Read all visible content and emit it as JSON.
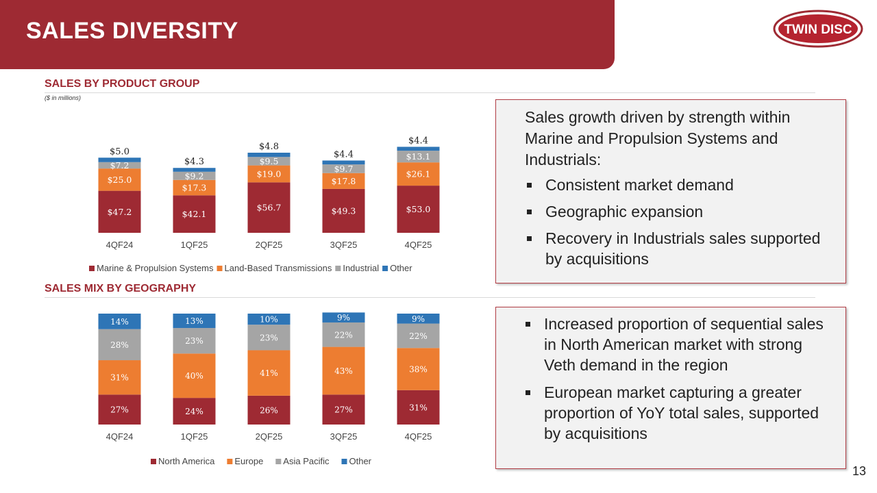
{
  "header": {
    "title": "SALES DIVERSITY",
    "logo_text": "TWIN DISC"
  },
  "section1": {
    "title": "SALES BY PRODUCT GROUP",
    "subtitle": "($ in millions)"
  },
  "section2": {
    "title": "SALES MIX BY GEOGRAPHY"
  },
  "box1": {
    "lead": "Sales growth driven by strength within Marine and Propulsion Systems and Industrials:",
    "bullets": [
      "Consistent market demand",
      "Geographic expansion",
      "Recovery in Industrials sales supported by acquisitions"
    ]
  },
  "box2": {
    "bullets": [
      "Increased proportion of sequential sales in North American market with strong Veth demand in the region",
      "European market capturing a greater proportion of YoY total sales, supported by acquisitions"
    ]
  },
  "page_number": "13",
  "colors": {
    "marine": "#9e2a33",
    "land": "#ed7d31",
    "industrial": "#a5a5a5",
    "other": "#2e75b6",
    "brand": "#9e2a33"
  },
  "chart_data": [
    {
      "type": "bar",
      "stacked": true,
      "title": "SALES BY PRODUCT GROUP",
      "subtitle": "($ in millions)",
      "categories": [
        "4QF24",
        "1QF25",
        "2QF25",
        "3QF25",
        "4QF25"
      ],
      "series": [
        {
          "name": "Marine & Propulsion Systems",
          "values": [
            47.2,
            42.1,
            56.7,
            49.3,
            53.0
          ],
          "labels": [
            "$47.2",
            "$42.1",
            "$56.7",
            "$49.3",
            "$53.0"
          ],
          "color": "#9e2a33"
        },
        {
          "name": "Land-Based Transmissions",
          "values": [
            25.0,
            17.3,
            19.0,
            17.8,
            26.1
          ],
          "labels": [
            "$25.0",
            "$17.3",
            "$19.0",
            "$17.8",
            "$26.1"
          ],
          "color": "#ed7d31"
        },
        {
          "name": "Industrial",
          "values": [
            7.2,
            9.2,
            9.5,
            9.7,
            13.1
          ],
          "labels": [
            "$7.2",
            "$9.2",
            "$9.5",
            "$9.7",
            "$13.1"
          ],
          "color": "#a5a5a5"
        },
        {
          "name": "Other",
          "values": [
            5.0,
            4.3,
            4.8,
            4.4,
            4.4
          ],
          "labels": [
            "$5.0",
            "$4.3",
            "$4.8",
            "$4.4",
            "$4.4"
          ],
          "color": "#2e75b6"
        }
      ],
      "ylim": [
        0,
        100
      ],
      "legend": "bottom"
    },
    {
      "type": "bar",
      "stacked": true,
      "title": "SALES MIX BY GEOGRAPHY",
      "categories": [
        "4QF24",
        "1QF25",
        "2QF25",
        "3QF25",
        "4QF25"
      ],
      "series": [
        {
          "name": "North America",
          "values": [
            27,
            24,
            26,
            27,
            31
          ],
          "labels": [
            "27%",
            "24%",
            "26%",
            "27%",
            "31%"
          ],
          "color": "#9e2a33"
        },
        {
          "name": "Europe",
          "values": [
            31,
            40,
            41,
            43,
            38
          ],
          "labels": [
            "31%",
            "40%",
            "41%",
            "43%",
            "38%"
          ],
          "color": "#ed7d31"
        },
        {
          "name": "Asia Pacific",
          "values": [
            28,
            23,
            23,
            22,
            22
          ],
          "labels": [
            "28%",
            "23%",
            "23%",
            "22%",
            "22%"
          ],
          "color": "#a5a5a5"
        },
        {
          "name": "Other",
          "values": [
            14,
            13,
            10,
            9,
            9
          ],
          "labels": [
            "14%",
            "13%",
            "10%",
            "9%",
            "9%"
          ],
          "color": "#2e75b6"
        }
      ],
      "ylim": [
        0,
        100
      ],
      "legend": "bottom"
    }
  ]
}
